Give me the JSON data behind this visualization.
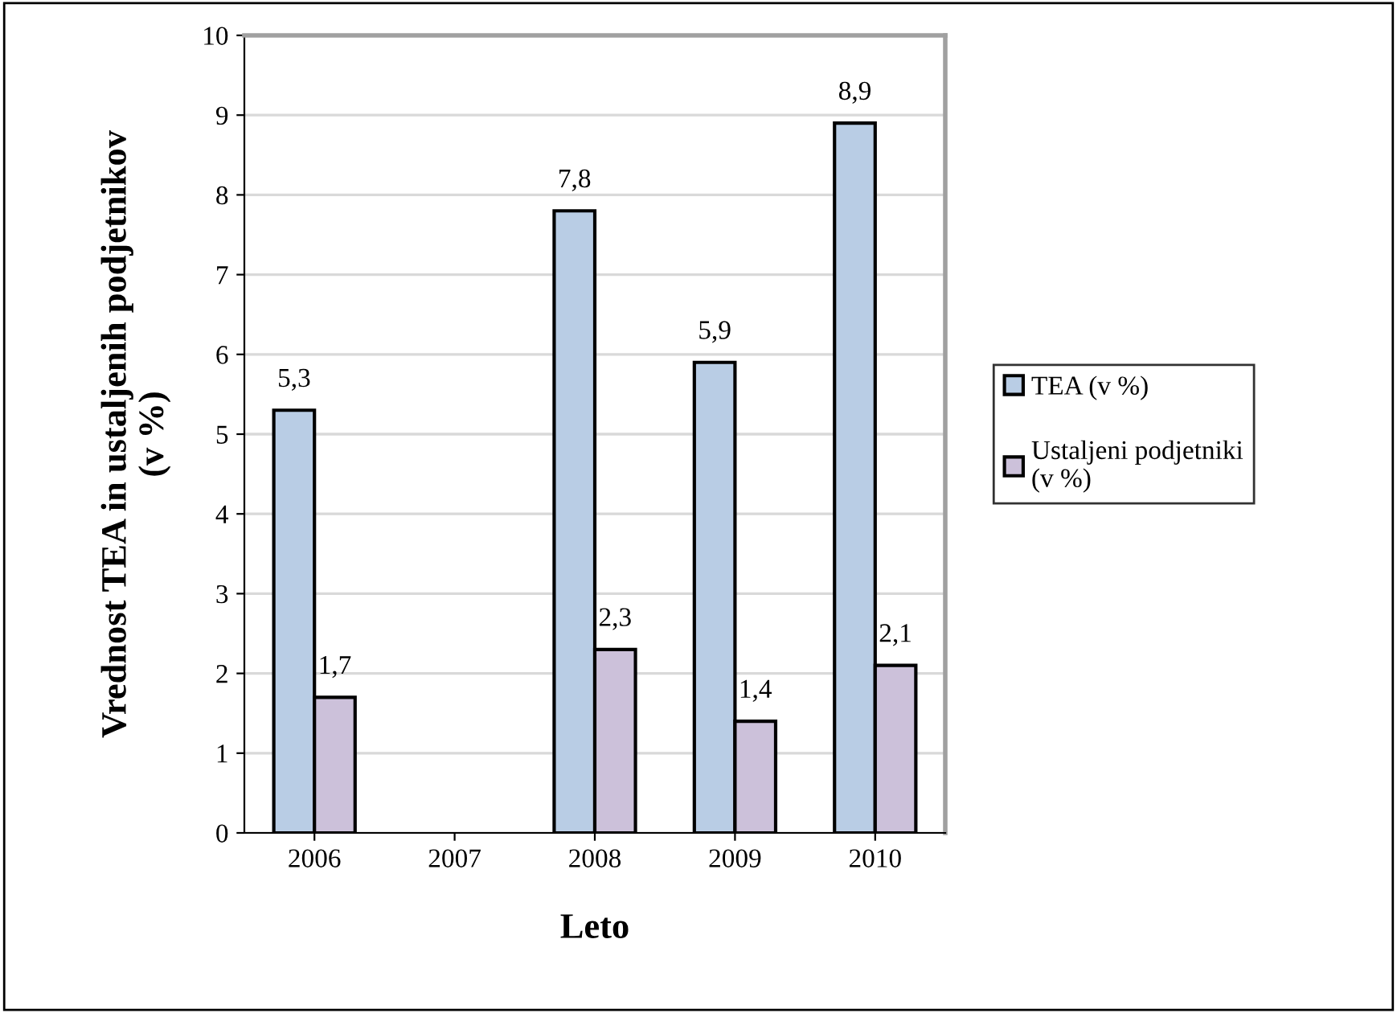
{
  "chart_data": {
    "type": "bar",
    "xlabel": "Leto",
    "ylabel": "Vrednost TEA in ustaljenih podjetnikov\n(v %)",
    "categories": [
      "2006",
      "2007",
      "2008",
      "2009",
      "2010"
    ],
    "series": [
      {
        "name": "TEA (v %)",
        "color": "#b9cde5",
        "values": [
          5.3,
          null,
          7.8,
          5.9,
          8.9
        ],
        "value_labels": [
          "5,3",
          null,
          "7,8",
          "5,9",
          "8,9"
        ]
      },
      {
        "name": "Ustaljeni podjetniki\n(v %)",
        "color": "#ccc1da",
        "values": [
          1.7,
          null,
          2.3,
          1.4,
          2.1
        ],
        "value_labels": [
          "1,7",
          null,
          "2,3",
          "1,4",
          "2,1"
        ]
      }
    ],
    "ylim": [
      0,
      10
    ],
    "yticks": [
      0,
      1,
      2,
      3,
      4,
      5,
      6,
      7,
      8,
      9,
      10
    ],
    "grid": "y",
    "legend": "right"
  }
}
